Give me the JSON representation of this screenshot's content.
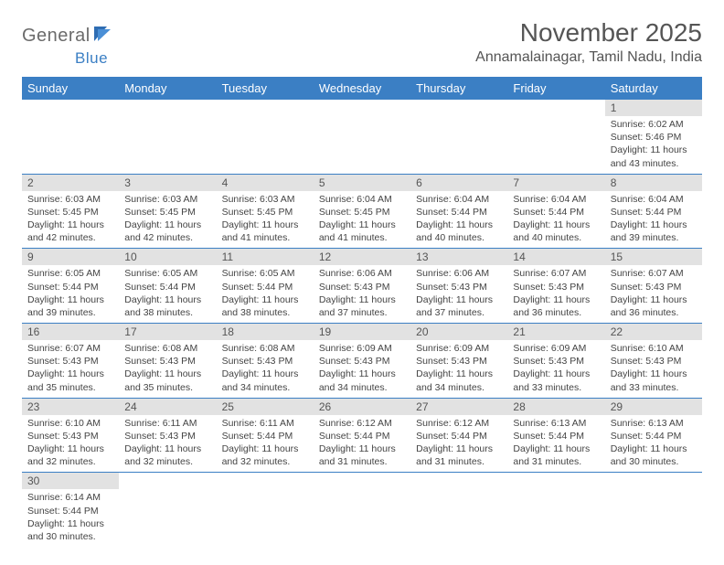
{
  "brand": {
    "part1": "General",
    "part2": "Blue"
  },
  "title": "November 2025",
  "location": "Annamalainagar, Tamil Nadu, India",
  "colors": {
    "header_bg": "#3b7fc4",
    "header_text": "#ffffff",
    "daynum_bg": "#e2e2e2",
    "text": "#555555",
    "body_text": "#444444",
    "row_border": "#3b7fc4"
  },
  "weekdays": [
    "Sunday",
    "Monday",
    "Tuesday",
    "Wednesday",
    "Thursday",
    "Friday",
    "Saturday"
  ],
  "weeks": [
    [
      {
        "n": "",
        "sr": "",
        "ss": "",
        "dl": ""
      },
      {
        "n": "",
        "sr": "",
        "ss": "",
        "dl": ""
      },
      {
        "n": "",
        "sr": "",
        "ss": "",
        "dl": ""
      },
      {
        "n": "",
        "sr": "",
        "ss": "",
        "dl": ""
      },
      {
        "n": "",
        "sr": "",
        "ss": "",
        "dl": ""
      },
      {
        "n": "",
        "sr": "",
        "ss": "",
        "dl": ""
      },
      {
        "n": "1",
        "sr": "Sunrise: 6:02 AM",
        "ss": "Sunset: 5:46 PM",
        "dl": "Daylight: 11 hours and 43 minutes."
      }
    ],
    [
      {
        "n": "2",
        "sr": "Sunrise: 6:03 AM",
        "ss": "Sunset: 5:45 PM",
        "dl": "Daylight: 11 hours and 42 minutes."
      },
      {
        "n": "3",
        "sr": "Sunrise: 6:03 AM",
        "ss": "Sunset: 5:45 PM",
        "dl": "Daylight: 11 hours and 42 minutes."
      },
      {
        "n": "4",
        "sr": "Sunrise: 6:03 AM",
        "ss": "Sunset: 5:45 PM",
        "dl": "Daylight: 11 hours and 41 minutes."
      },
      {
        "n": "5",
        "sr": "Sunrise: 6:04 AM",
        "ss": "Sunset: 5:45 PM",
        "dl": "Daylight: 11 hours and 41 minutes."
      },
      {
        "n": "6",
        "sr": "Sunrise: 6:04 AM",
        "ss": "Sunset: 5:44 PM",
        "dl": "Daylight: 11 hours and 40 minutes."
      },
      {
        "n": "7",
        "sr": "Sunrise: 6:04 AM",
        "ss": "Sunset: 5:44 PM",
        "dl": "Daylight: 11 hours and 40 minutes."
      },
      {
        "n": "8",
        "sr": "Sunrise: 6:04 AM",
        "ss": "Sunset: 5:44 PM",
        "dl": "Daylight: 11 hours and 39 minutes."
      }
    ],
    [
      {
        "n": "9",
        "sr": "Sunrise: 6:05 AM",
        "ss": "Sunset: 5:44 PM",
        "dl": "Daylight: 11 hours and 39 minutes."
      },
      {
        "n": "10",
        "sr": "Sunrise: 6:05 AM",
        "ss": "Sunset: 5:44 PM",
        "dl": "Daylight: 11 hours and 38 minutes."
      },
      {
        "n": "11",
        "sr": "Sunrise: 6:05 AM",
        "ss": "Sunset: 5:44 PM",
        "dl": "Daylight: 11 hours and 38 minutes."
      },
      {
        "n": "12",
        "sr": "Sunrise: 6:06 AM",
        "ss": "Sunset: 5:43 PM",
        "dl": "Daylight: 11 hours and 37 minutes."
      },
      {
        "n": "13",
        "sr": "Sunrise: 6:06 AM",
        "ss": "Sunset: 5:43 PM",
        "dl": "Daylight: 11 hours and 37 minutes."
      },
      {
        "n": "14",
        "sr": "Sunrise: 6:07 AM",
        "ss": "Sunset: 5:43 PM",
        "dl": "Daylight: 11 hours and 36 minutes."
      },
      {
        "n": "15",
        "sr": "Sunrise: 6:07 AM",
        "ss": "Sunset: 5:43 PM",
        "dl": "Daylight: 11 hours and 36 minutes."
      }
    ],
    [
      {
        "n": "16",
        "sr": "Sunrise: 6:07 AM",
        "ss": "Sunset: 5:43 PM",
        "dl": "Daylight: 11 hours and 35 minutes."
      },
      {
        "n": "17",
        "sr": "Sunrise: 6:08 AM",
        "ss": "Sunset: 5:43 PM",
        "dl": "Daylight: 11 hours and 35 minutes."
      },
      {
        "n": "18",
        "sr": "Sunrise: 6:08 AM",
        "ss": "Sunset: 5:43 PM",
        "dl": "Daylight: 11 hours and 34 minutes."
      },
      {
        "n": "19",
        "sr": "Sunrise: 6:09 AM",
        "ss": "Sunset: 5:43 PM",
        "dl": "Daylight: 11 hours and 34 minutes."
      },
      {
        "n": "20",
        "sr": "Sunrise: 6:09 AM",
        "ss": "Sunset: 5:43 PM",
        "dl": "Daylight: 11 hours and 34 minutes."
      },
      {
        "n": "21",
        "sr": "Sunrise: 6:09 AM",
        "ss": "Sunset: 5:43 PM",
        "dl": "Daylight: 11 hours and 33 minutes."
      },
      {
        "n": "22",
        "sr": "Sunrise: 6:10 AM",
        "ss": "Sunset: 5:43 PM",
        "dl": "Daylight: 11 hours and 33 minutes."
      }
    ],
    [
      {
        "n": "23",
        "sr": "Sunrise: 6:10 AM",
        "ss": "Sunset: 5:43 PM",
        "dl": "Daylight: 11 hours and 32 minutes."
      },
      {
        "n": "24",
        "sr": "Sunrise: 6:11 AM",
        "ss": "Sunset: 5:43 PM",
        "dl": "Daylight: 11 hours and 32 minutes."
      },
      {
        "n": "25",
        "sr": "Sunrise: 6:11 AM",
        "ss": "Sunset: 5:44 PM",
        "dl": "Daylight: 11 hours and 32 minutes."
      },
      {
        "n": "26",
        "sr": "Sunrise: 6:12 AM",
        "ss": "Sunset: 5:44 PM",
        "dl": "Daylight: 11 hours and 31 minutes."
      },
      {
        "n": "27",
        "sr": "Sunrise: 6:12 AM",
        "ss": "Sunset: 5:44 PM",
        "dl": "Daylight: 11 hours and 31 minutes."
      },
      {
        "n": "28",
        "sr": "Sunrise: 6:13 AM",
        "ss": "Sunset: 5:44 PM",
        "dl": "Daylight: 11 hours and 31 minutes."
      },
      {
        "n": "29",
        "sr": "Sunrise: 6:13 AM",
        "ss": "Sunset: 5:44 PM",
        "dl": "Daylight: 11 hours and 30 minutes."
      }
    ],
    [
      {
        "n": "30",
        "sr": "Sunrise: 6:14 AM",
        "ss": "Sunset: 5:44 PM",
        "dl": "Daylight: 11 hours and 30 minutes."
      },
      {
        "n": "",
        "sr": "",
        "ss": "",
        "dl": ""
      },
      {
        "n": "",
        "sr": "",
        "ss": "",
        "dl": ""
      },
      {
        "n": "",
        "sr": "",
        "ss": "",
        "dl": ""
      },
      {
        "n": "",
        "sr": "",
        "ss": "",
        "dl": ""
      },
      {
        "n": "",
        "sr": "",
        "ss": "",
        "dl": ""
      },
      {
        "n": "",
        "sr": "",
        "ss": "",
        "dl": ""
      }
    ]
  ]
}
